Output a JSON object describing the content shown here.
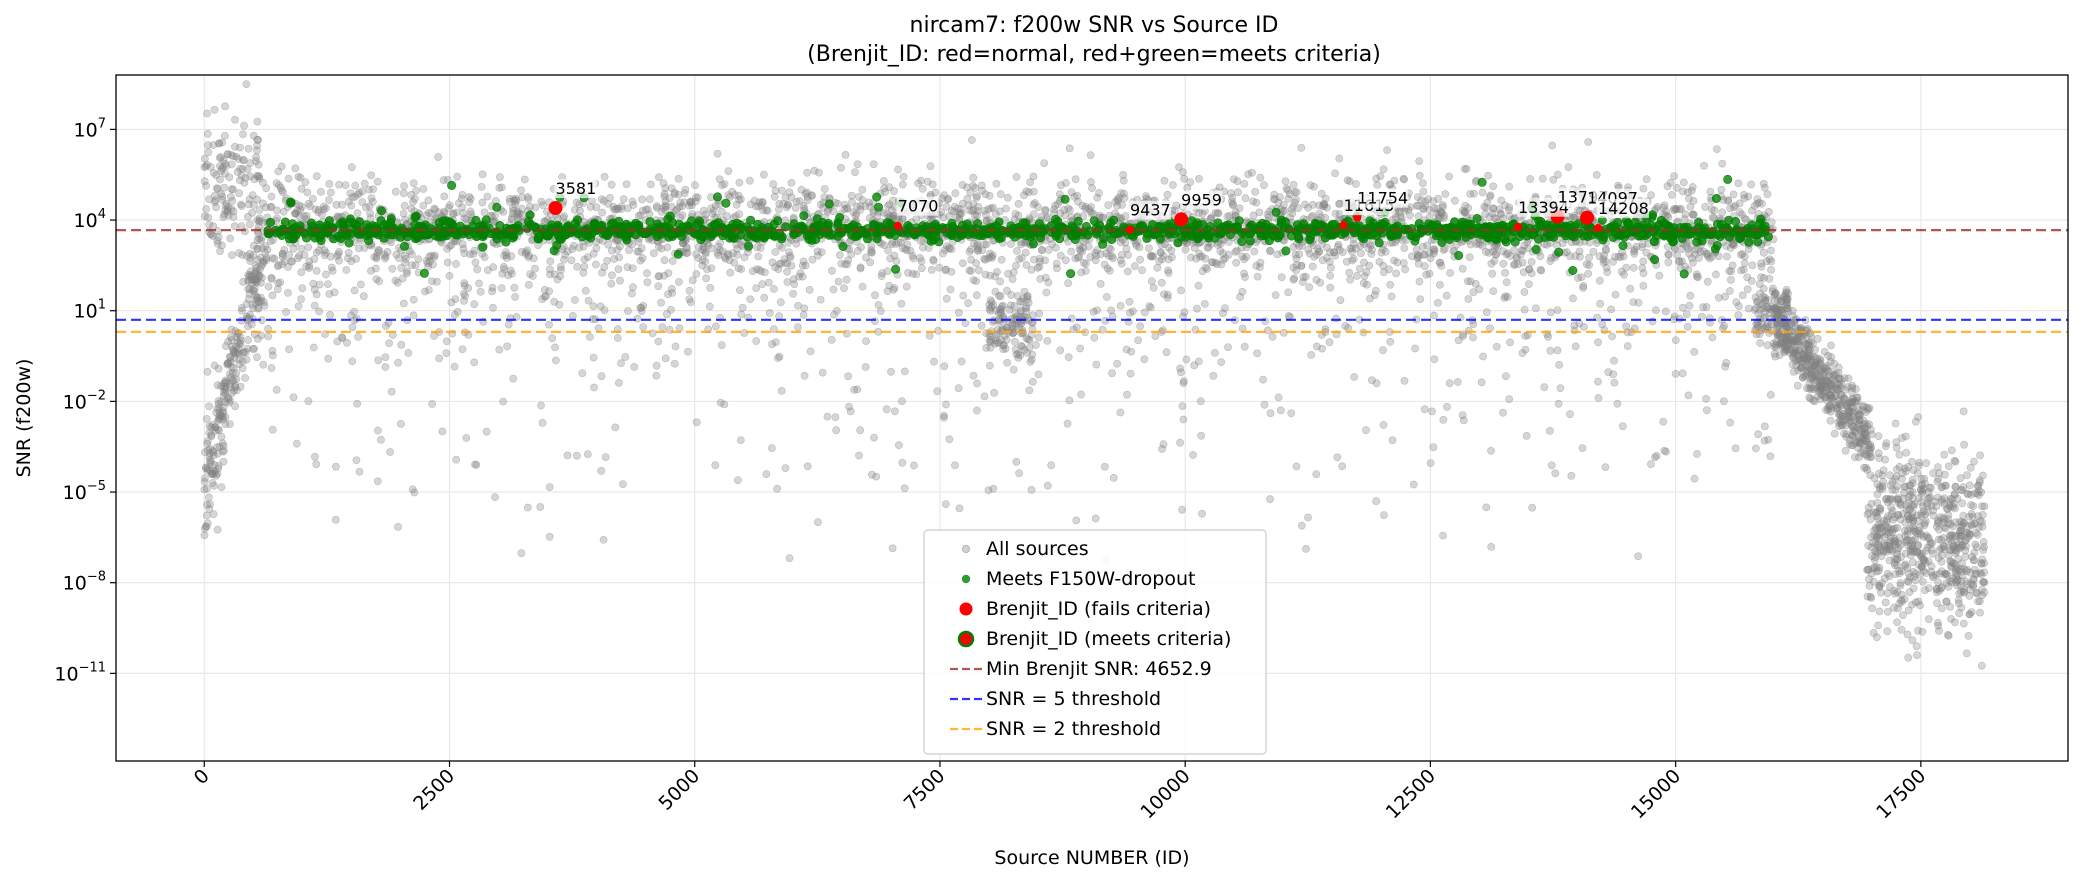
{
  "chart_data": {
    "type": "scatter",
    "title": "nircam7: f200w SNR vs Source ID",
    "subtitle": "(Brenjit_ID: red=normal, red+green=meets criteria)",
    "xlabel": "Source NUMBER (ID)",
    "ylabel": "SNR (f200w)",
    "xlim": [
      -900,
      19000
    ],
    "ylog": true,
    "ylim_exponent": [
      -13.9,
      8.8
    ],
    "xticks": [
      0,
      2500,
      5000,
      7500,
      10000,
      12500,
      15000,
      17500
    ],
    "xtick_labels": [
      "0",
      "2500",
      "5000",
      "7500",
      "10000",
      "12500",
      "15000",
      "17500"
    ],
    "yticks_exponent": [
      7,
      4,
      1,
      -2,
      -5,
      -8,
      -11
    ],
    "ytick_labels": [
      "10^7",
      "10^4",
      "10^1",
      "10^-2",
      "10^-5",
      "10^-8",
      "10^-11"
    ],
    "grid": true,
    "legend_position": "lower-center",
    "colors": {
      "all_sources": "#808080",
      "meets": "#008000",
      "brenjit": "#ff0000",
      "min_line": "#a52a2a",
      "snr5": "#0000ff",
      "snr2": "#ffa500"
    },
    "hlines": [
      {
        "name": "Min Brenjit SNR: 4652.9",
        "y": 4652.9,
        "color": "#a52a2a"
      },
      {
        "name": "SNR = 5 threshold",
        "y": 5,
        "color": "#0000ff"
      },
      {
        "name": "SNR = 2 threshold",
        "y": 2,
        "color": "#ffa500"
      }
    ],
    "series": [
      {
        "name": "All sources",
        "marker": "gray-dot"
      },
      {
        "name": "Meets F150W-dropout",
        "marker": "green-dot"
      },
      {
        "name": "Brenjit_ID (fails criteria)",
        "marker": "red-dot"
      },
      {
        "name": "Brenjit_ID (meets criteria)",
        "marker": "red-green-dot"
      }
    ],
    "brenjit_points": [
      {
        "label": "3581",
        "x": 3581,
        "y": 25000
      },
      {
        "label": "7070",
        "x": 7070,
        "y": 6500
      },
      {
        "label": "9437",
        "x": 9437,
        "y": 4800
      },
      {
        "label": "9959",
        "x": 9959,
        "y": 10500
      },
      {
        "label": "11615",
        "x": 11615,
        "y": 6800
      },
      {
        "label": "11754",
        "x": 11754,
        "y": 12000
      },
      {
        "label": "13394",
        "x": 13394,
        "y": 6000
      },
      {
        "label": "13797",
        "x": 13797,
        "y": 13000
      },
      {
        "label": "14097",
        "x": 14097,
        "y": 12000
      },
      {
        "label": "14208",
        "x": 14208,
        "y": 5500
      }
    ]
  }
}
